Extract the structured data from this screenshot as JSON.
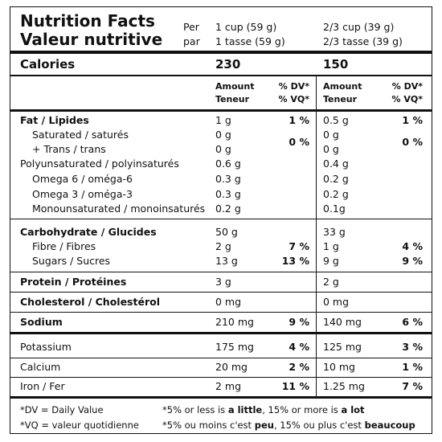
{
  "header": {
    "title_en": "Nutrition Facts",
    "title_fr": "Valeur nutritive",
    "per": "Per",
    "par": "par",
    "serving1_en": "1 cup (59 g)",
    "serving1_fr": "1 tasse (59 g)",
    "serving2_en": "2/3 cup (39 g)",
    "serving2_fr": "2/3 tasse (39 g)"
  },
  "calories": {
    "label": "Calories",
    "value1": "230",
    "value2": "150"
  },
  "column_headers": {
    "amount": "Amount",
    "teneur": "Teneur",
    "dv": "% DV*",
    "vq": "% VQ*"
  },
  "rows": [
    {
      "label": "Fat / Lipides",
      "amount1": "1 g",
      "dv1": "1 %",
      "amount2": "0.5 g",
      "dv2": "1 %"
    },
    {
      "label": "Saturated / saturés",
      "amount1": "0 g",
      "amount2": "0 g"
    },
    {
      "label": "+ Trans / trans",
      "amount1": "0 g",
      "amount2": "0 g"
    },
    {
      "label": "Polyunsaturated / polyinsaturés",
      "amount1": "0.6 g",
      "amount2": "0.4 g"
    },
    {
      "label": "Omega 6 / oméga-6",
      "amount1": "0.3 g",
      "amount2": "0.2 g"
    },
    {
      "label": "Omega 3 / oméga-3",
      "amount1": "0.3 g",
      "amount2": "0.2 g"
    },
    {
      "label": "Monounsaturated / monoinsaturés",
      "amount1": "0.2 g",
      "amount2": "0.1g"
    },
    {
      "label": "Carbohydrate / Glucides",
      "amount1": "50 g",
      "amount2": "33 g"
    },
    {
      "label": "Fibre / Fibres",
      "amount1": "2 g",
      "dv1": "7 %",
      "amount2": "1 g",
      "dv2": "4 %"
    },
    {
      "label": "Sugars / Sucres",
      "amount1": "13 g",
      "dv1": "13 %",
      "amount2": "9 g",
      "dv2": "9 %"
    },
    {
      "label": "Protein / Protéines",
      "amount1": "3 g",
      "amount2": "2 g"
    },
    {
      "label": "Cholesterol / Cholestérol",
      "amount1": "0 mg",
      "amount2": "0 mg"
    },
    {
      "label": "Sodium",
      "amount1": "210 mg",
      "dv1": "9 %",
      "amount2": "140 mg",
      "dv2": "6 %"
    },
    {
      "label": "Potassium",
      "amount1": "175 mg",
      "dv1": "4 %",
      "amount2": "125 mg",
      "dv2": "3 %"
    },
    {
      "label": "Calcium",
      "amount1": "20 mg",
      "dv1": "2 %",
      "amount2": "10 mg",
      "dv2": "1 %"
    },
    {
      "label": "Iron / Fer",
      "amount1": "2 mg",
      "dv1": "11 %",
      "amount2": "1.25 mg",
      "dv2": "7 %"
    }
  ],
  "saturated_trans_dv": [
    "0 %",
    "0 %"
  ],
  "footnotes": {
    "dv": "*DV = Daily Value",
    "vq": "*VQ = valeur quotidienne",
    "en": [
      "*5% or less is ",
      "a little",
      ", 15% or more is ",
      "a lot"
    ],
    "fr": [
      "*5% ou moins c'est ",
      "peu",
      ", 15% ou plus c'est ",
      "beaucoup"
    ]
  }
}
